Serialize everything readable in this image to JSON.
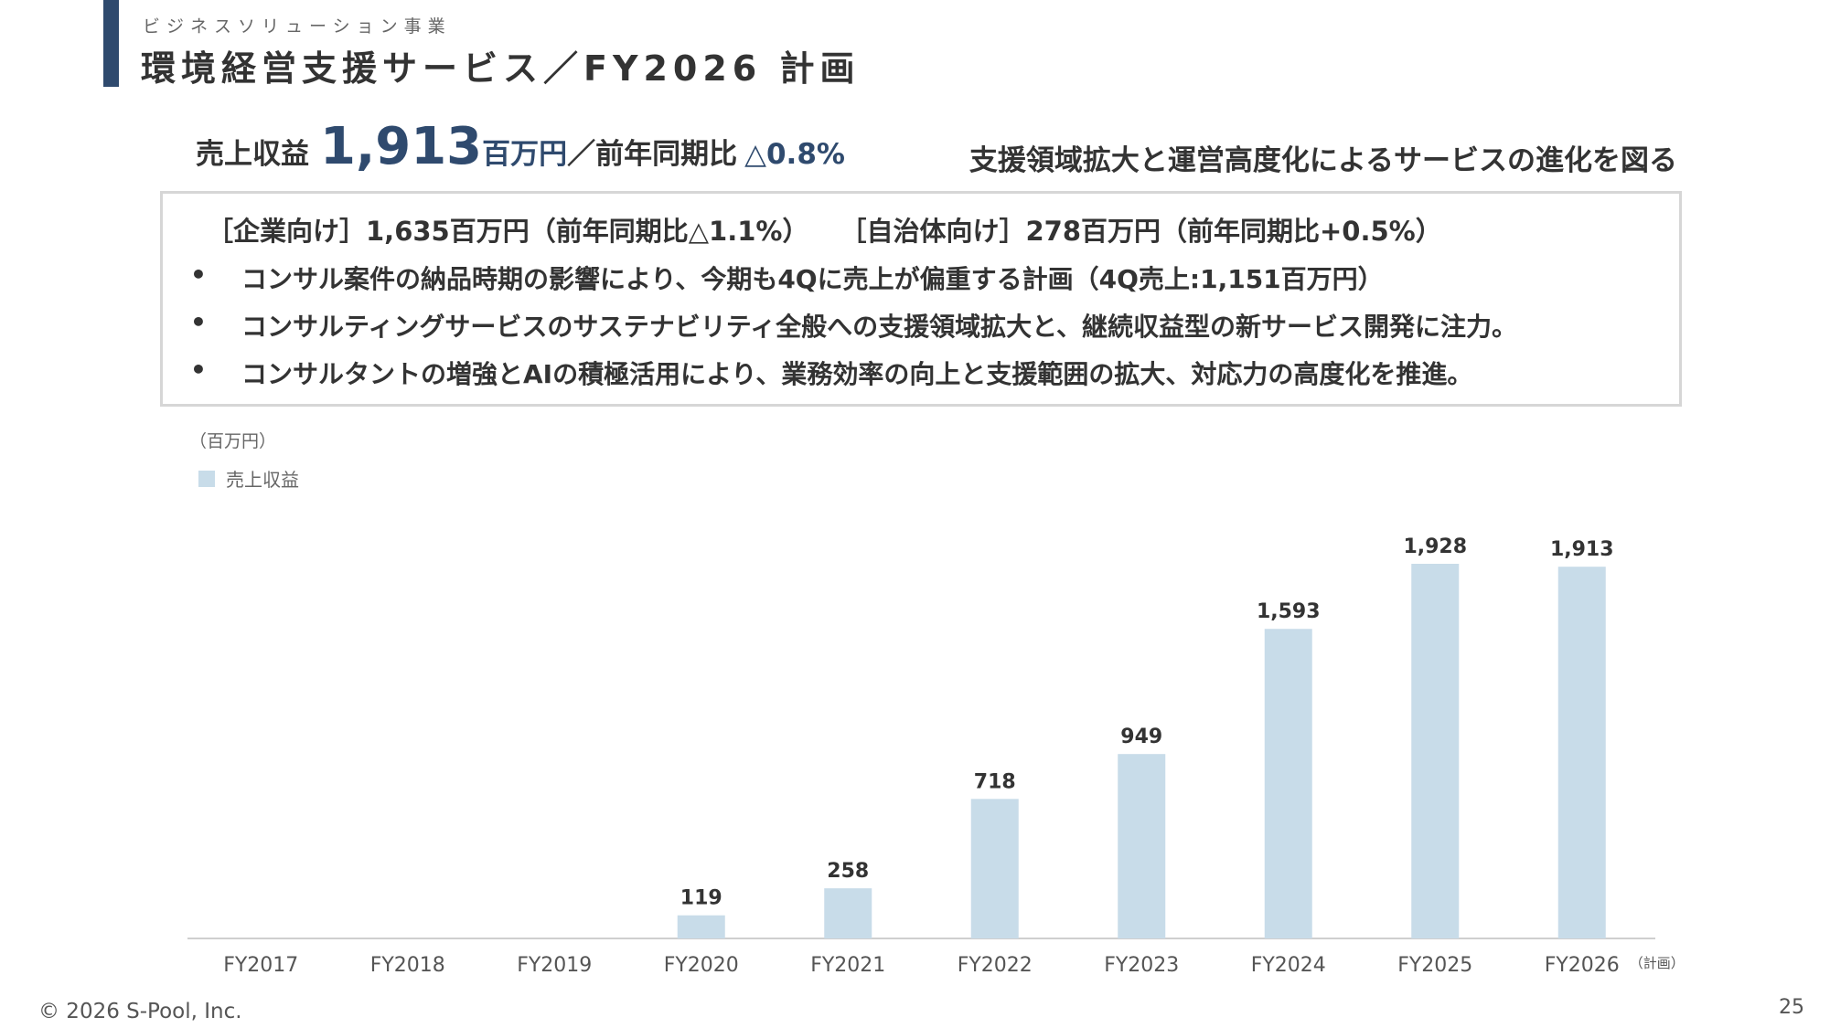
{
  "header": {
    "subtitle": "ビジネスソリューション事業",
    "title": "環境経営支援サービス／FY2026 計画"
  },
  "summary": {
    "label": "売上収益",
    "value": "1,913",
    "unit": "百万円",
    "yoy_label": "／前年同期比",
    "yoy_value": "△0.8%",
    "tagline": "支援領域拡大と運営高度化によるサービスの進化を図る"
  },
  "box": {
    "corporate": "［企業向け］1,635百万円（前年同期比△1.1%）",
    "municipal": "［自治体向け］278百万円（前年同期比+0.5%）",
    "bullet_symbol": "•",
    "bullets": [
      "コンサル案件の納品時期の影響により、今期も4Qに売上が偏重する計画（4Q売上:1,151百万円）",
      "コンサルティングサービスのサステナビリティ全般への支援領域拡大と、継続収益型の新サービス開発に注力。",
      "コンサルタントの増強とAIの積極活用により、業務効率の向上と支援範囲の拡大、対応力の高度化を推進。"
    ]
  },
  "chart_data": {
    "type": "bar",
    "unit_label": "（百万円）",
    "categories": [
      "FY2017",
      "FY2018",
      "FY2019",
      "FY2020",
      "FY2021",
      "FY2022",
      "FY2023",
      "FY2024",
      "FY2025",
      "FY2026"
    ],
    "category_notes": [
      "",
      "",
      "",
      "",
      "",
      "",
      "",
      "",
      "",
      "（計画）"
    ],
    "series": [
      {
        "name": "売上収益",
        "values": [
          null,
          null,
          null,
          119,
          258,
          718,
          949,
          1593,
          1928,
          1913
        ],
        "labels": [
          "",
          "",
          "",
          "119",
          "258",
          "718",
          "949",
          "1,593",
          "1,928",
          "1,913"
        ]
      }
    ],
    "ylim": [
      0,
      2000
    ],
    "colors": {
      "bar": "#c8dce9",
      "axis": "#cfcfcf",
      "label": "#333333",
      "tick": "#555555"
    }
  },
  "footer": {
    "copyright": "© 2026 S-Pool, Inc.",
    "page_number": "25"
  }
}
